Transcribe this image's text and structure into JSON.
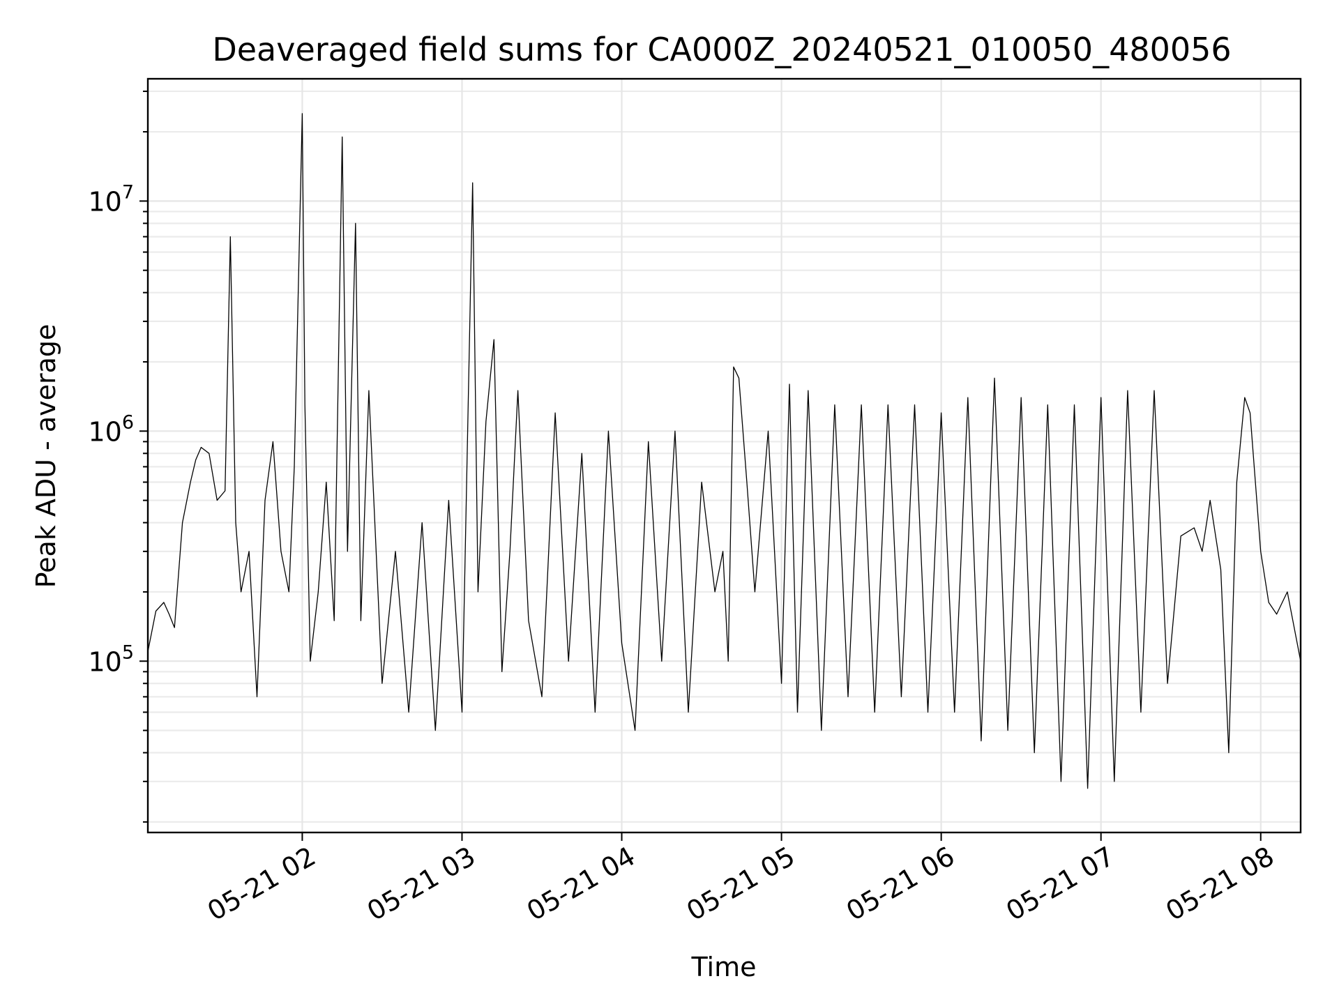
{
  "chart_data": {
    "type": "line",
    "title": "Deaveraged field sums for CA000Z_20240521_010050_480056",
    "xlabel": "Time",
    "ylabel": "Peak ADU - average",
    "yscale": "log",
    "ylim": [
      18000,
      34000000
    ],
    "xlim": [
      "2024-05-21 01:02",
      "2024-05-21 08:15"
    ],
    "grid": true,
    "x_ticks": [
      {
        "value": "2024-05-21 02:00",
        "label": "05-21 02"
      },
      {
        "value": "2024-05-21 03:00",
        "label": "05-21 03"
      },
      {
        "value": "2024-05-21 04:00",
        "label": "05-21 04"
      },
      {
        "value": "2024-05-21 05:00",
        "label": "05-21 05"
      },
      {
        "value": "2024-05-21 06:00",
        "label": "05-21 06"
      },
      {
        "value": "2024-05-21 07:00",
        "label": "05-21 07"
      },
      {
        "value": "2024-05-21 08:00",
        "label": "05-21 08"
      }
    ],
    "y_ticks": [
      {
        "value": 100000,
        "base": "10",
        "exp": "5"
      },
      {
        "value": 1000000,
        "base": "10",
        "exp": "6"
      },
      {
        "value": 10000000,
        "base": "10",
        "exp": "7"
      }
    ],
    "series": [
      {
        "color": "#000000",
        "x": [
          "2024-05-21 01:02",
          "2024-05-21 01:05",
          "2024-05-21 01:08",
          "2024-05-21 01:10",
          "2024-05-21 01:12",
          "2024-05-21 01:15",
          "2024-05-21 01:18",
          "2024-05-21 01:20",
          "2024-05-21 01:22",
          "2024-05-21 01:25",
          "2024-05-21 01:28",
          "2024-05-21 01:31",
          "2024-05-21 01:33",
          "2024-05-21 01:35",
          "2024-05-21 01:37",
          "2024-05-21 01:40",
          "2024-05-21 01:43",
          "2024-05-21 01:46",
          "2024-05-21 01:49",
          "2024-05-21 01:52",
          "2024-05-21 01:55",
          "2024-05-21 01:57",
          "2024-05-21 02:00",
          "2024-05-21 02:01",
          "2024-05-21 02:03",
          "2024-05-21 02:06",
          "2024-05-21 02:09",
          "2024-05-21 02:12",
          "2024-05-21 02:15",
          "2024-05-21 02:17",
          "2024-05-21 02:20",
          "2024-05-21 02:22",
          "2024-05-21 02:25",
          "2024-05-21 02:30",
          "2024-05-21 02:35",
          "2024-05-21 02:40",
          "2024-05-21 02:45",
          "2024-05-21 02:50",
          "2024-05-21 02:55",
          "2024-05-21 03:00",
          "2024-05-21 03:04",
          "2024-05-21 03:06",
          "2024-05-21 03:09",
          "2024-05-21 03:12",
          "2024-05-21 03:15",
          "2024-05-21 03:18",
          "2024-05-21 03:21",
          "2024-05-21 03:25",
          "2024-05-21 03:30",
          "2024-05-21 03:35",
          "2024-05-21 03:40",
          "2024-05-21 03:45",
          "2024-05-21 03:50",
          "2024-05-21 03:55",
          "2024-05-21 04:00",
          "2024-05-21 04:05",
          "2024-05-21 04:10",
          "2024-05-21 04:15",
          "2024-05-21 04:20",
          "2024-05-21 04:25",
          "2024-05-21 04:30",
          "2024-05-21 04:35",
          "2024-05-21 04:38",
          "2024-05-21 04:40",
          "2024-05-21 04:42",
          "2024-05-21 04:44",
          "2024-05-21 04:47",
          "2024-05-21 04:50",
          "2024-05-21 04:55",
          "2024-05-21 05:00",
          "2024-05-21 05:03",
          "2024-05-21 05:06",
          "2024-05-21 05:10",
          "2024-05-21 05:15",
          "2024-05-21 05:20",
          "2024-05-21 05:25",
          "2024-05-21 05:30",
          "2024-05-21 05:35",
          "2024-05-21 05:40",
          "2024-05-21 05:45",
          "2024-05-21 05:50",
          "2024-05-21 05:55",
          "2024-05-21 06:00",
          "2024-05-21 06:05",
          "2024-05-21 06:10",
          "2024-05-21 06:15",
          "2024-05-21 06:20",
          "2024-05-21 06:25",
          "2024-05-21 06:30",
          "2024-05-21 06:35",
          "2024-05-21 06:40",
          "2024-05-21 06:45",
          "2024-05-21 06:50",
          "2024-05-21 06:55",
          "2024-05-21 07:00",
          "2024-05-21 07:05",
          "2024-05-21 07:10",
          "2024-05-21 07:15",
          "2024-05-21 07:20",
          "2024-05-21 07:25",
          "2024-05-21 07:30",
          "2024-05-21 07:35",
          "2024-05-21 07:38",
          "2024-05-21 07:41",
          "2024-05-21 07:45",
          "2024-05-21 07:48",
          "2024-05-21 07:51",
          "2024-05-21 07:54",
          "2024-05-21 07:56",
          "2024-05-21 07:58",
          "2024-05-21 08:00",
          "2024-05-21 08:03",
          "2024-05-21 08:06",
          "2024-05-21 08:10",
          "2024-05-21 08:15"
        ],
        "y": [
          110000,
          165000,
          180000,
          160000,
          140000,
          400000,
          600000,
          750000,
          850000,
          800000,
          500000,
          550000,
          7000000,
          400000,
          200000,
          300000,
          70000,
          500000,
          900000,
          300000,
          200000,
          700000,
          24000000,
          1300000,
          100000,
          200000,
          600000,
          150000,
          19000000,
          300000,
          8000000,
          150000,
          1500000,
          80000,
          300000,
          60000,
          400000,
          50000,
          500000,
          60000,
          12000000,
          200000,
          1100000,
          2500000,
          90000,
          300000,
          1500000,
          150000,
          70000,
          1200000,
          100000,
          800000,
          60000,
          1000000,
          120000,
          50000,
          900000,
          100000,
          1000000,
          60000,
          600000,
          200000,
          300000,
          100000,
          1900000,
          1700000,
          600000,
          200000,
          1000000,
          80000,
          1600000,
          60000,
          1500000,
          50000,
          1300000,
          70000,
          1300000,
          60000,
          1300000,
          70000,
          1300000,
          60000,
          1200000,
          60000,
          1400000,
          45000,
          1700000,
          50000,
          1400000,
          40000,
          1300000,
          30000,
          1300000,
          28000,
          1400000,
          30000,
          1500000,
          60000,
          1500000,
          80000,
          350000,
          380000,
          300000,
          500000,
          250000,
          40000,
          600000,
          1400000,
          1200000,
          600000,
          300000,
          180000,
          160000,
          200000,
          100000
        ]
      }
    ]
  }
}
